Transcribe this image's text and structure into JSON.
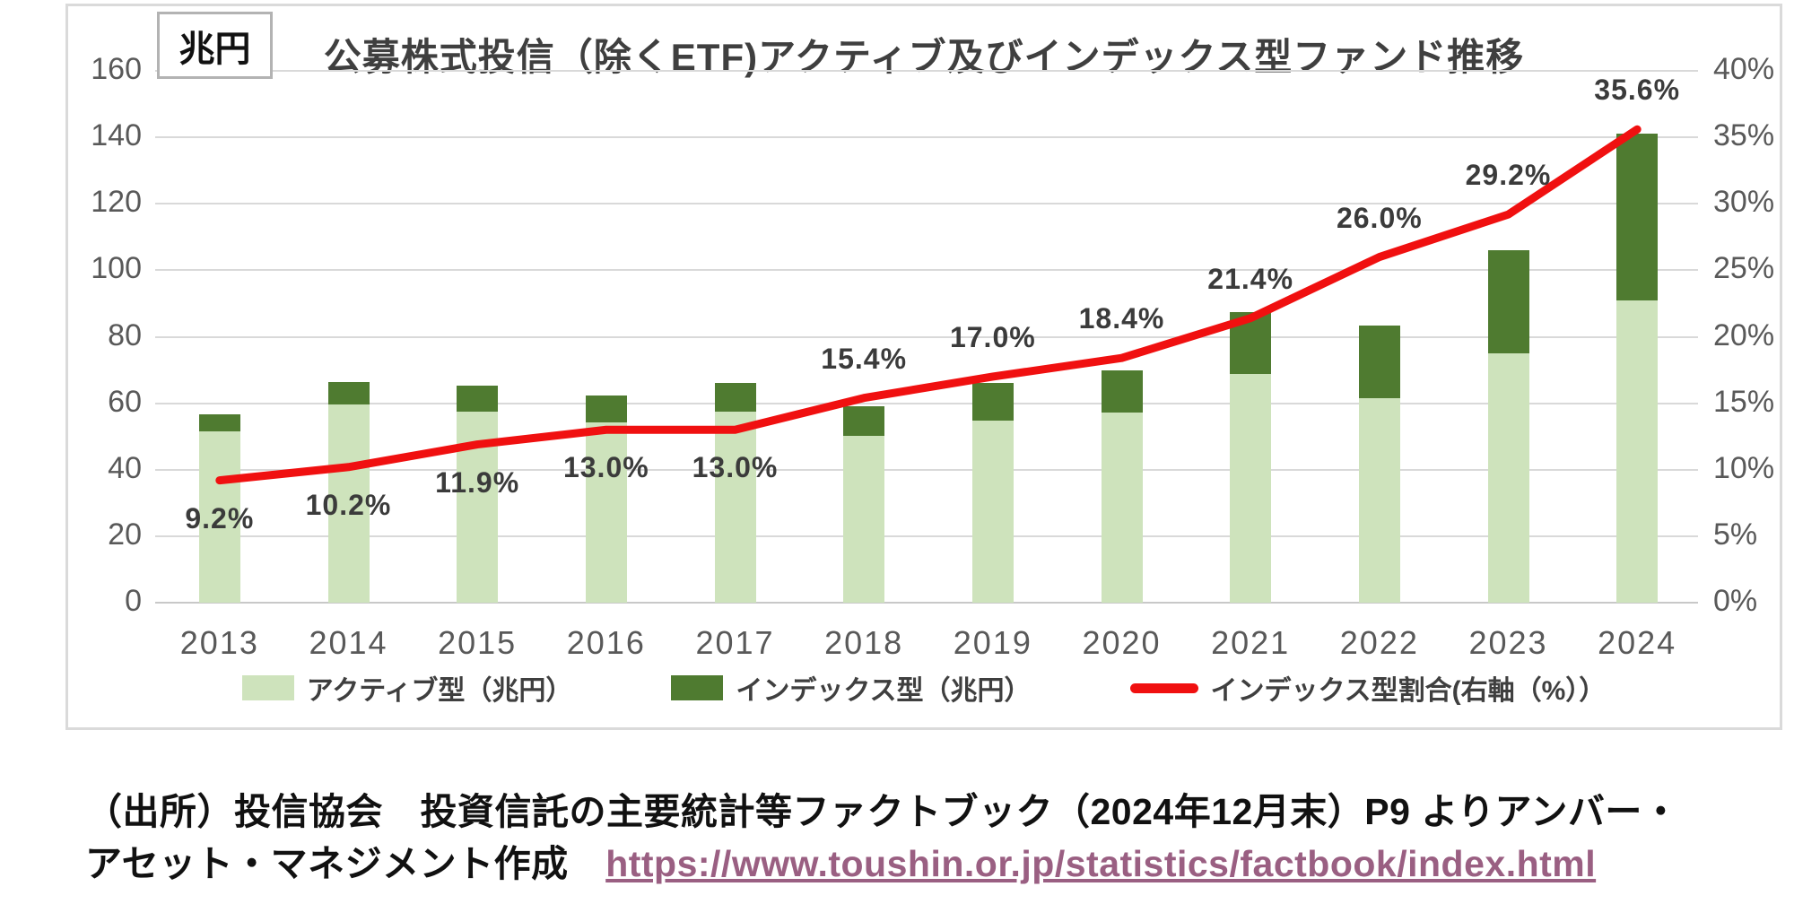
{
  "title": "公募株式投信（除くETF)アクティブ及びインデックス型ファンド推移",
  "unit_label": "兆円",
  "chart_data": {
    "type": "bar",
    "subtype": "stacked-bars-with-line",
    "title": "公募株式投信（除くETF)アクティブ及びインデックス型ファンド推移",
    "categories": [
      "2013",
      "2014",
      "2015",
      "2016",
      "2017",
      "2018",
      "2019",
      "2020",
      "2021",
      "2022",
      "2023",
      "2024"
    ],
    "series": [
      {
        "name": "アクティブ型（兆円）",
        "type": "bar",
        "stack": "funds",
        "color": "#cee3bc",
        "values": [
          51.5,
          59.5,
          57.6,
          54.1,
          57.5,
          50.1,
          54.9,
          57.1,
          68.8,
          61.6,
          75.0,
          90.8
        ]
      },
      {
        "name": "インデックス型（兆円）",
        "type": "bar",
        "stack": "funds",
        "color": "#4f7b30",
        "values": [
          5.2,
          6.8,
          7.8,
          8.1,
          8.6,
          9.1,
          11.3,
          12.9,
          18.7,
          21.7,
          31.0,
          50.3
        ]
      },
      {
        "name": "インデックス型割合(右軸（%））",
        "type": "line",
        "axis": "right",
        "color": "#f01010",
        "values": [
          9.2,
          10.2,
          11.9,
          13.0,
          13.0,
          15.4,
          17.0,
          18.4,
          21.4,
          26.0,
          29.2,
          35.6
        ]
      }
    ],
    "point_labels": [
      "9.2%",
      "10.2%",
      "11.9%",
      "13.0%",
      "13.0%",
      "15.4%",
      "17.0%",
      "18.4%",
      "21.4%",
      "26.0%",
      "29.2%",
      "35.6%"
    ],
    "point_label_positions": [
      "below",
      "below",
      "below",
      "below",
      "below",
      "above",
      "above",
      "above",
      "above",
      "above",
      "above",
      "above"
    ],
    "left_axis": {
      "title": "兆円",
      "min": 0,
      "max": 160,
      "tick_values": [
        0,
        20,
        40,
        60,
        80,
        100,
        120,
        140,
        160
      ],
      "tick_labels": [
        "0",
        "20",
        "40",
        "60",
        "80",
        "100",
        "120",
        "140",
        "160"
      ]
    },
    "right_axis": {
      "min": 0,
      "max": 40,
      "tick_values": [
        0,
        5,
        10,
        15,
        20,
        25,
        30,
        35,
        40
      ],
      "tick_labels": [
        "0%",
        "5%",
        "10%",
        "15%",
        "20%",
        "25%",
        "30%",
        "35%",
        "40%"
      ]
    },
    "grid": true,
    "legend_position": "bottom"
  },
  "source": {
    "line1": "（出所）投信協会　投資信託の主要統計等ファクトブック（2024年12月末）P9 よりアンバー・",
    "line2_text": "アセット・マネジメント作成　",
    "url": "https://www.toushin.or.jp/statistics/factbook/index.html",
    "link_color": "#9a5f82"
  }
}
